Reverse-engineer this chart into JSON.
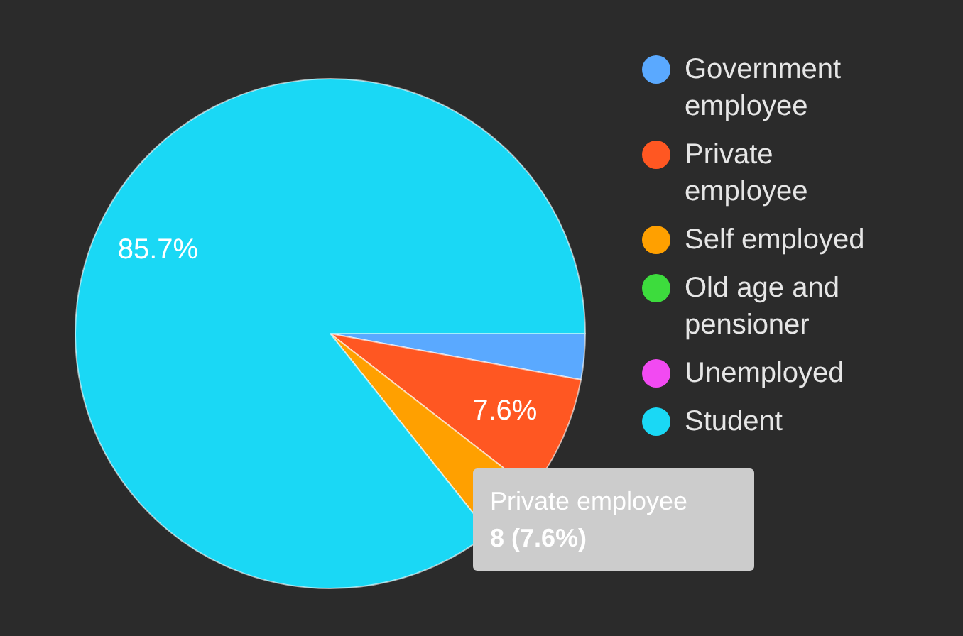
{
  "chart_data": {
    "type": "pie",
    "categories": [
      "Government employee",
      "Private employee",
      "Self employed",
      "Old age and pensioner",
      "Unemployed",
      "Student"
    ],
    "values": [
      2.9,
      7.6,
      3.8,
      0,
      0,
      85.7
    ],
    "colors": [
      "#5aa9ff",
      "#ff5722",
      "#ffa000",
      "#3ddc3d",
      "#f24af2",
      "#1ad8f5"
    ],
    "value_labels": [
      null,
      "7.6%",
      null,
      null,
      null,
      "85.7%"
    ],
    "legend": "right",
    "annotations": [
      "Private employee",
      "8 (7.6%)"
    ]
  }
}
